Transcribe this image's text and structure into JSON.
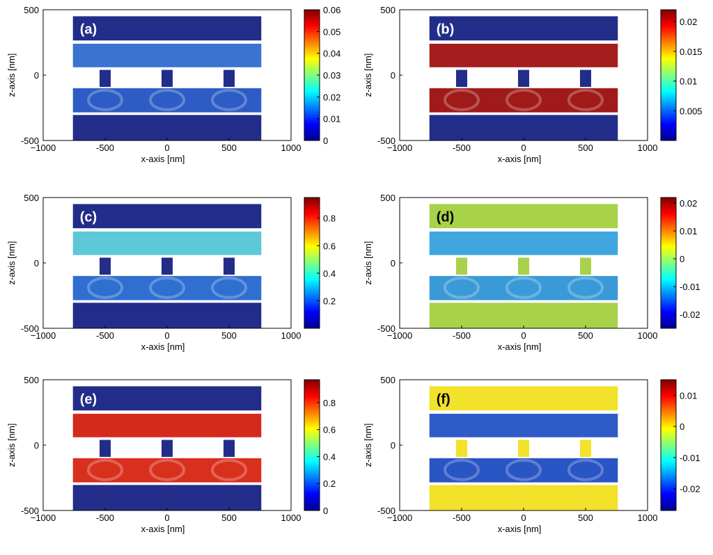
{
  "chart_data": [
    {
      "type": "heatmap",
      "panel_label": "(a)",
      "xlabel": "x-axis [nm]",
      "ylabel": "z-axis [nm]",
      "xlim": [
        -1000,
        1000
      ],
      "ylim": [
        -500,
        500
      ],
      "xticks": [
        "−1000",
        "-500",
        "0",
        "500",
        "1000"
      ],
      "yticks": [
        "500",
        "0",
        "-500"
      ],
      "colorbar": {
        "ticks": [
          "0.06",
          "0.05",
          "0.04",
          "0.03",
          "0.02",
          "0.01",
          "0"
        ],
        "range": [
          0,
          0.06
        ]
      },
      "background_colors": {
        "top_slab": "#222d8a",
        "upper_layer": "#3a73d0",
        "lower_layer": "#2d5cc4",
        "bottom_slab": "#222d8a",
        "pillars": "#222d8a"
      },
      "label_color": "#ffffff"
    },
    {
      "type": "heatmap",
      "panel_label": "(b)",
      "xlabel": "x-axis [nm]",
      "ylabel": "z-axis [nm]",
      "xlim": [
        -1000,
        1000
      ],
      "ylim": [
        -500,
        500
      ],
      "xticks": [
        "−1000",
        "-500",
        "0",
        "500",
        "1000"
      ],
      "yticks": [
        "500",
        "0",
        "-500"
      ],
      "colorbar": {
        "ticks": [
          "0.02",
          "0.015",
          "0.01",
          "0.005"
        ],
        "range": [
          0,
          0.022
        ]
      },
      "background_colors": {
        "top_slab": "#222d8a",
        "upper_layer": "#a51e1e",
        "lower_layer": "#a01a1a",
        "bottom_slab": "#222d8a",
        "pillars": "#222d8a"
      },
      "label_color": "#ffffff"
    },
    {
      "type": "heatmap",
      "panel_label": "(c)",
      "xlabel": "x-axis [nm]",
      "ylabel": "z-axis [nm]",
      "xlim": [
        -1000,
        1000
      ],
      "ylim": [
        -500,
        500
      ],
      "xticks": [
        "−1000",
        "-500",
        "0",
        "500",
        "1000"
      ],
      "yticks": [
        "500",
        "0",
        "-500"
      ],
      "colorbar": {
        "ticks": [
          "0.8",
          "0.6",
          "0.4",
          "0.2"
        ],
        "range": [
          0,
          0.95
        ]
      },
      "background_colors": {
        "top_slab": "#222d8a",
        "upper_layer": "#5cc8d8",
        "lower_layer": "#2e6fcf",
        "bottom_slab": "#222d8a",
        "pillars": "#222d8a"
      },
      "label_color": "#ffffff"
    },
    {
      "type": "heatmap",
      "panel_label": "(d)",
      "xlabel": "x-axis [nm]",
      "ylabel": "z-axis [nm]",
      "xlim": [
        -1000,
        1000
      ],
      "ylim": [
        -500,
        500
      ],
      "xticks": [
        "−1000",
        "-500",
        "0",
        "500",
        "1000"
      ],
      "yticks": [
        "500",
        "0",
        "-500"
      ],
      "colorbar": {
        "ticks": [
          "0.02",
          "0.01",
          "0",
          "-0.01",
          "-0.02"
        ],
        "range": [
          -0.025,
          0.022
        ]
      },
      "background_colors": {
        "top_slab": "#a8d24a",
        "upper_layer": "#3fa6e0",
        "lower_layer": "#3a9ad8",
        "bottom_slab": "#a8d24a",
        "pillars": "#a8d24a"
      },
      "label_color": "#000000"
    },
    {
      "type": "heatmap",
      "panel_label": "(e)",
      "xlabel": "x-axis [nm]",
      "ylabel": "z-axis [nm]",
      "xlim": [
        -1000,
        1000
      ],
      "ylim": [
        -500,
        500
      ],
      "xticks": [
        "−1000",
        "-500",
        "0",
        "500",
        "1000"
      ],
      "yticks": [
        "500",
        "0",
        "-500"
      ],
      "colorbar": {
        "ticks": [
          "0.8",
          "0.6",
          "0.4",
          "0.2",
          "0"
        ],
        "range": [
          0,
          0.97
        ]
      },
      "background_colors": {
        "top_slab": "#222d8a",
        "upper_layer": "#d42a1e",
        "lower_layer": "#d9301e",
        "bottom_slab": "#222d8a",
        "pillars": "#222d8a"
      },
      "label_color": "#ffffff"
    },
    {
      "type": "heatmap",
      "panel_label": "(f)",
      "xlabel": "x-axis [nm]",
      "ylabel": "z-axis [nm]",
      "xlim": [
        -1000,
        1000
      ],
      "ylim": [
        -500,
        500
      ],
      "xticks": [
        "−1000",
        "-500",
        "0",
        "500",
        "1000"
      ],
      "yticks": [
        "500",
        "0",
        "-500"
      ],
      "colorbar": {
        "ticks": [
          "0.01",
          "0",
          "-0.01",
          "-0.02"
        ],
        "range": [
          -0.027,
          0.015
        ]
      },
      "background_colors": {
        "top_slab": "#f2e22a",
        "upper_layer": "#2e5bc8",
        "lower_layer": "#2a55c4",
        "bottom_slab": "#f2e22a",
        "pillars": "#f2e22a"
      },
      "label_color": "#000000"
    }
  ],
  "colormap": [
    "#00008f",
    "#0000ff",
    "#007fff",
    "#00ffff",
    "#7fff7f",
    "#ffff00",
    "#ff7f00",
    "#ff0000",
    "#7f0000"
  ],
  "pillar_x_centers": [
    -500,
    0,
    500
  ]
}
